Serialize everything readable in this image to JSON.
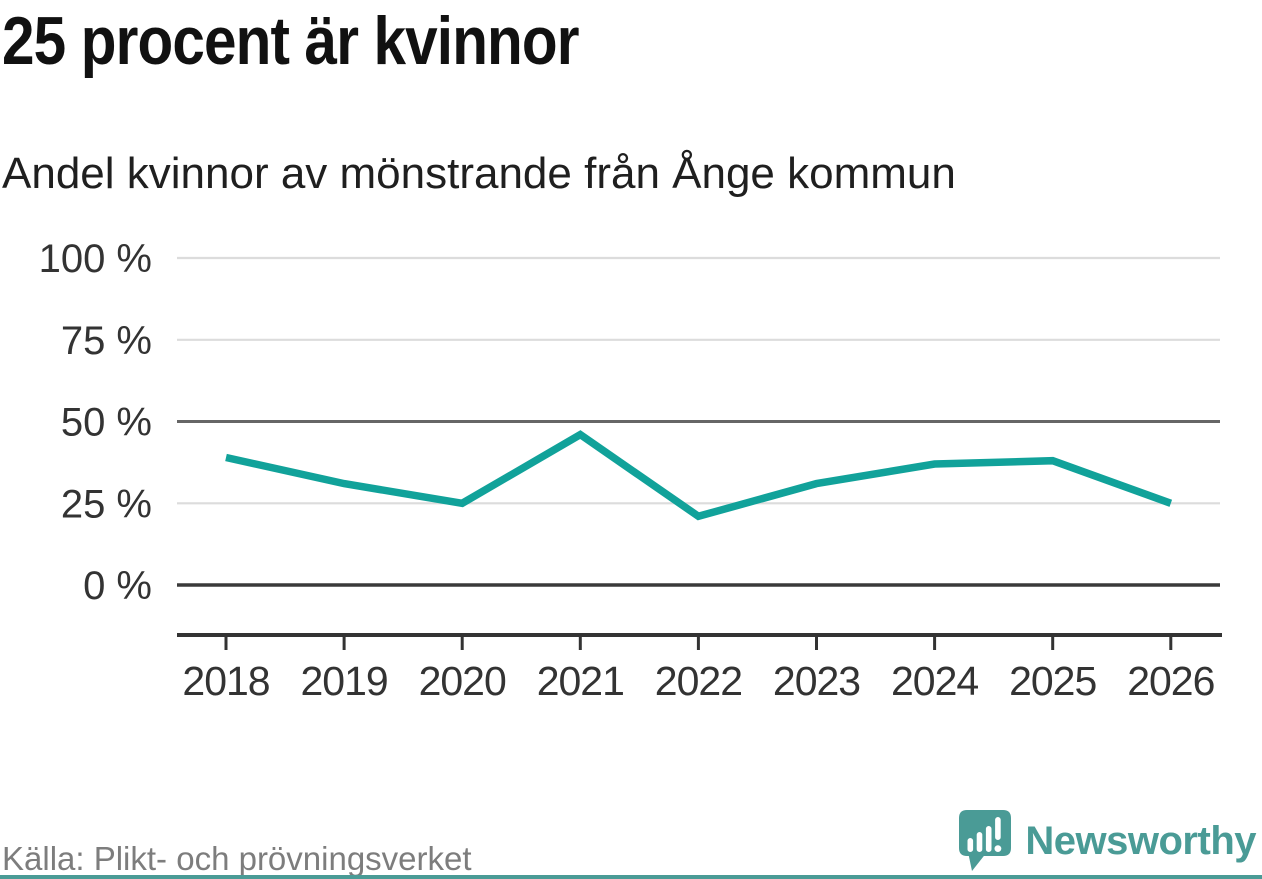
{
  "header": {
    "title": "25 procent är kvinnor",
    "subtitle": "Andel kvinnor av mönstrande från Ånge kommun"
  },
  "footer": {
    "source": "Källa: Plikt- och prövningsverket",
    "brand": "Newsworthy",
    "brand_icon": "speech-bubble-bar-chart-icon"
  },
  "colors": {
    "line_teal": "#11a29a",
    "brand_teal": "#4a9b96",
    "grid_light": "#dcdcdc",
    "grid_mid": "#666666",
    "grid_zero": "#3a3a3a",
    "axis": "#333333",
    "title_text": "#111111",
    "subtitle_text": "#1f1f1f",
    "tick_text": "#333333",
    "source_text": "#7d7d7d"
  },
  "chart_data": {
    "type": "line",
    "title": "25 procent är kvinnor",
    "subtitle": "Andel kvinnor av mönstrande från Ånge kommun",
    "categories": [
      "2018",
      "2019",
      "2020",
      "2021",
      "2022",
      "2023",
      "2024",
      "2025",
      "2026"
    ],
    "series": [
      {
        "name": "Andel kvinnor av mönstrande (%)",
        "color": "#11a29a",
        "values": [
          39,
          31,
          25,
          46,
          21,
          31,
          37,
          38,
          25
        ]
      }
    ],
    "unit": "%",
    "xlabel": "",
    "ylabel": "",
    "ylim": [
      0,
      100
    ],
    "yticks": [
      {
        "value": 100,
        "label": "100 %",
        "emphasis": "light"
      },
      {
        "value": 75,
        "label": "75 %",
        "emphasis": "light"
      },
      {
        "value": 50,
        "label": "50 %",
        "emphasis": "medium"
      },
      {
        "value": 25,
        "label": "25 %",
        "emphasis": "light"
      },
      {
        "value": 0,
        "label": "0 %",
        "emphasis": "strong"
      }
    ],
    "grid": "horizontal-only",
    "legend": "none"
  }
}
